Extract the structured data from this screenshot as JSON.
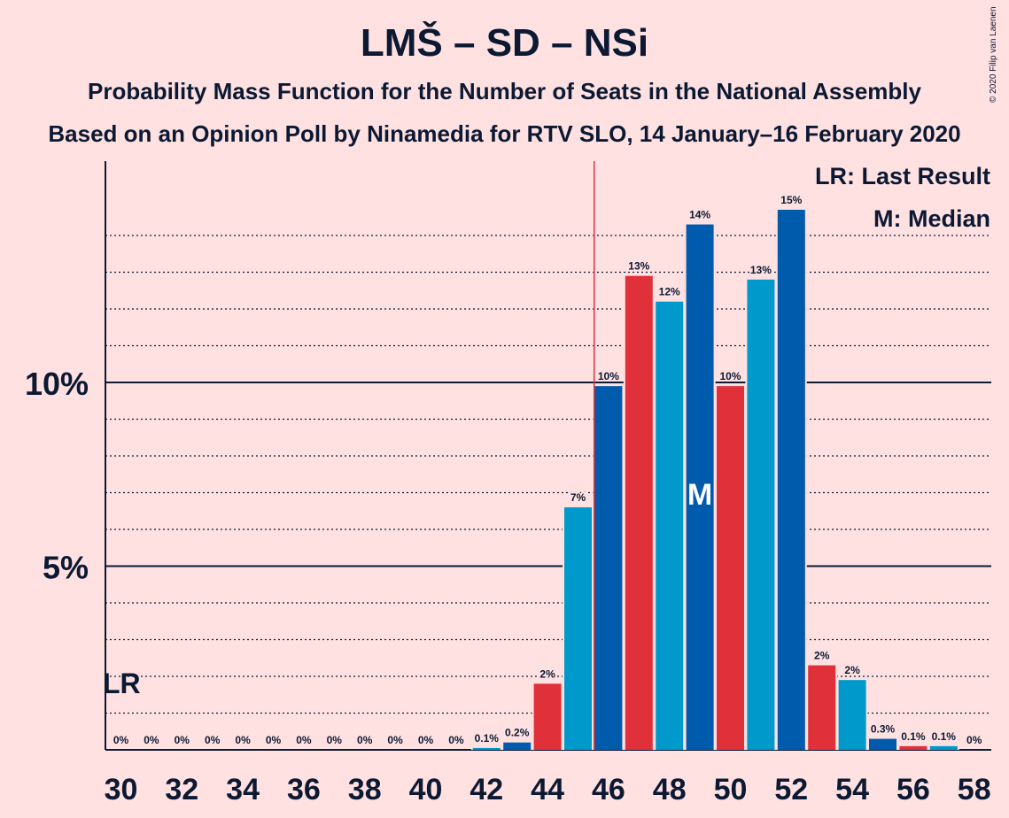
{
  "title": "LMŠ – SD – NSi",
  "subtitle1": "Probability Mass Function for the Number of Seats in the National Assembly",
  "subtitle2": "Based on an Opinion Poll by Ninamedia for RTV SLO, 14 January–16 February 2020",
  "copyright": "© 2020 Filip van Laenen",
  "legend": {
    "last_result": "LR: Last Result",
    "median": "M: Median"
  },
  "markers": {
    "last_result_label": "LR",
    "median_label": "M"
  },
  "colors": {
    "background": "#FFE1E1",
    "red": "#E0313A",
    "light_blue": "#0099CC",
    "dark_blue": "#005BAC",
    "threshold_line": "#E0313A",
    "text": "#0B1933"
  },
  "chart_data": {
    "type": "bar",
    "x": [
      30,
      31,
      32,
      33,
      34,
      35,
      36,
      37,
      38,
      39,
      40,
      41,
      42,
      43,
      44,
      45,
      46,
      47,
      48,
      49,
      50,
      51,
      52,
      53,
      54,
      55,
      56,
      57,
      58
    ],
    "values": [
      0,
      0,
      0,
      0,
      0,
      0,
      0,
      0,
      0,
      0,
      0,
      0,
      0.05,
      0.2,
      1.8,
      6.6,
      9.9,
      12.9,
      12.2,
      14.3,
      9.9,
      12.8,
      14.7,
      2.3,
      1.9,
      0.3,
      0.1,
      0.1,
      0
    ],
    "labels": [
      "0%",
      "0%",
      "0%",
      "0%",
      "0%",
      "0%",
      "0%",
      "0%",
      "0%",
      "0%",
      "0%",
      "0%",
      "0.1%",
      "0.2%",
      "2%",
      "7%",
      "10%",
      "13%",
      "12%",
      "14%",
      "10%",
      "13%",
      "15%",
      "2%",
      "2%",
      "0.3%",
      "0.1%",
      "0.1%",
      "0%"
    ],
    "x_tick_labels": [
      "30",
      "32",
      "34",
      "36",
      "38",
      "40",
      "42",
      "44",
      "46",
      "48",
      "50",
      "52",
      "54",
      "56",
      "58"
    ],
    "y_tick_labels": [
      "5%",
      "10%"
    ],
    "y_ticks": [
      5,
      10
    ],
    "ylim": [
      0,
      16
    ],
    "last_result_x": 30,
    "median_x": 49,
    "majority_threshold_x": 45.5,
    "grid": "dotted minor at each 1%, solid at 5% and 10%"
  }
}
